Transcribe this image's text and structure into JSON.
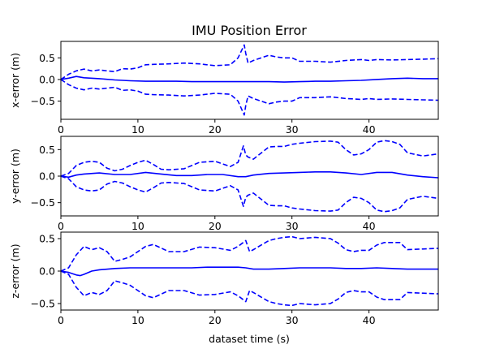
{
  "chart_data": {
    "type": "line",
    "title": "IMU Position Error",
    "xlabel": "dataset time (s)",
    "xlim": [
      0,
      49
    ],
    "x_ticks": [
      0,
      10,
      20,
      30,
      40
    ],
    "grid": false,
    "line_color": "#0000ff",
    "panels": [
      {
        "ylabel": "x-error (m)",
        "ylim": [
          -0.92,
          0.88
        ],
        "y_ticks": [
          -0.5,
          0.0,
          0.5
        ],
        "y_tick_labels": [
          "−0.5",
          "0.0",
          "0.5"
        ],
        "series": [
          {
            "style": "solid",
            "x": [
              0,
              1,
              2,
              3,
              5,
              7,
              9,
              11,
              13,
              15,
              17,
              19,
              21,
              23,
              24,
              25,
              27,
              29,
              31,
              33,
              35,
              37,
              39,
              41,
              43,
              45,
              47,
              49
            ],
            "y": [
              0,
              0.03,
              0.07,
              0.04,
              0.02,
              -0.01,
              -0.03,
              -0.04,
              -0.04,
              -0.04,
              -0.05,
              -0.05,
              -0.05,
              -0.05,
              -0.05,
              -0.05,
              -0.05,
              -0.06,
              -0.05,
              -0.04,
              -0.04,
              -0.03,
              -0.02,
              0,
              0.02,
              0.03,
              0.02,
              0.02
            ]
          },
          {
            "style": "dashed",
            "x": [
              0,
              1,
              2,
              3,
              4,
              5,
              6,
              7,
              8,
              9,
              10,
              11,
              12,
              14,
              16,
              18,
              20,
              22,
              23,
              23.8,
              24.0,
              24.3,
              25,
              27,
              28,
              29,
              30,
              31,
              33,
              35,
              37,
              38,
              39,
              40,
              41,
              43,
              45,
              47,
              49
            ],
            "y": [
              0,
              0.12,
              0.2,
              0.24,
              0.2,
              0.22,
              0.2,
              0.18,
              0.25,
              0.24,
              0.27,
              0.34,
              0.35,
              0.36,
              0.38,
              0.36,
              0.32,
              0.34,
              0.5,
              0.8,
              0.6,
              0.38,
              0.44,
              0.56,
              0.52,
              0.5,
              0.5,
              0.42,
              0.42,
              0.4,
              0.44,
              0.45,
              0.46,
              0.44,
              0.46,
              0.45,
              0.46,
              0.47,
              0.48
            ]
          },
          {
            "style": "dashed",
            "x": [
              0,
              1,
              2,
              3,
              4,
              5,
              6,
              7,
              8,
              9,
              10,
              11,
              12,
              14,
              16,
              18,
              20,
              22,
              23,
              23.8,
              24.0,
              24.3,
              25,
              27,
              28,
              29,
              30,
              31,
              33,
              35,
              37,
              38,
              39,
              40,
              41,
              43,
              45,
              47,
              49
            ],
            "y": [
              0,
              -0.12,
              -0.2,
              -0.24,
              -0.2,
              -0.22,
              -0.2,
              -0.18,
              -0.25,
              -0.24,
              -0.27,
              -0.34,
              -0.35,
              -0.36,
              -0.38,
              -0.36,
              -0.32,
              -0.34,
              -0.5,
              -0.82,
              -0.6,
              -0.38,
              -0.44,
              -0.56,
              -0.52,
              -0.5,
              -0.5,
              -0.42,
              -0.42,
              -0.4,
              -0.44,
              -0.45,
              -0.46,
              -0.44,
              -0.46,
              -0.45,
              -0.46,
              -0.47,
              -0.48
            ]
          }
        ]
      },
      {
        "ylabel": "y-error (m)",
        "ylim": [
          -0.75,
          0.75
        ],
        "y_ticks": [
          -0.5,
          0.0,
          0.5
        ],
        "y_tick_labels": [
          "−0.5",
          "0.0",
          "0.5"
        ],
        "series": [
          {
            "style": "solid",
            "x": [
              0,
              1,
              2,
              3,
              5,
              7,
              9,
              11,
              13,
              15,
              17,
              19,
              21,
              23,
              24,
              25,
              27,
              29,
              31,
              33,
              35,
              37,
              39,
              41,
              43,
              45,
              47,
              49
            ],
            "y": [
              0,
              -0.02,
              0.02,
              0.04,
              0.06,
              0.03,
              0.03,
              0.07,
              0.04,
              0.01,
              0.01,
              0.03,
              0.03,
              -0.01,
              -0.01,
              0.02,
              0.05,
              0.06,
              0.07,
              0.08,
              0.08,
              0.06,
              0.03,
              0.07,
              0.07,
              0.02,
              -0.01,
              -0.03
            ]
          },
          {
            "style": "dashed",
            "x": [
              0,
              1,
              2,
              3,
              4,
              5,
              6,
              7,
              8,
              9,
              10,
              11,
              12,
              13,
              14,
              16,
              18,
              20,
              22,
              23,
              23.7,
              24.0,
              24.3,
              25,
              27,
              28,
              29,
              30,
              31,
              33,
              35,
              36,
              37,
              38,
              39,
              40,
              41,
              42,
              43,
              44,
              45,
              47,
              49
            ],
            "y": [
              0,
              0.05,
              0.2,
              0.26,
              0.28,
              0.26,
              0.15,
              0.1,
              0.13,
              0.2,
              0.26,
              0.3,
              0.22,
              0.13,
              0.12,
              0.14,
              0.26,
              0.28,
              0.18,
              0.26,
              0.57,
              0.4,
              0.36,
              0.32,
              0.55,
              0.56,
              0.56,
              0.6,
              0.62,
              0.65,
              0.66,
              0.64,
              0.5,
              0.4,
              0.42,
              0.5,
              0.64,
              0.67,
              0.65,
              0.6,
              0.44,
              0.38,
              0.42
            ]
          },
          {
            "style": "dashed",
            "x": [
              0,
              1,
              2,
              3,
              4,
              5,
              6,
              7,
              8,
              9,
              10,
              11,
              12,
              13,
              14,
              16,
              18,
              20,
              22,
              23,
              23.7,
              24.0,
              24.3,
              25,
              27,
              28,
              29,
              30,
              31,
              33,
              35,
              36,
              37,
              38,
              39,
              40,
              41,
              42,
              43,
              44,
              45,
              47,
              49
            ],
            "y": [
              0,
              -0.05,
              -0.2,
              -0.26,
              -0.28,
              -0.26,
              -0.15,
              -0.1,
              -0.13,
              -0.2,
              -0.26,
              -0.3,
              -0.22,
              -0.13,
              -0.12,
              -0.14,
              -0.26,
              -0.28,
              -0.18,
              -0.26,
              -0.57,
              -0.4,
              -0.36,
              -0.32,
              -0.55,
              -0.56,
              -0.56,
              -0.6,
              -0.62,
              -0.65,
              -0.66,
              -0.64,
              -0.5,
              -0.4,
              -0.42,
              -0.5,
              -0.64,
              -0.67,
              -0.65,
              -0.6,
              -0.44,
              -0.38,
              -0.42
            ]
          }
        ]
      },
      {
        "ylabel": "z-error (m)",
        "ylim": [
          -0.6,
          0.6
        ],
        "y_ticks": [
          -0.5,
          0.0,
          0.5
        ],
        "y_tick_labels": [
          "−0.5",
          "0.0",
          "0.5"
        ],
        "series": [
          {
            "style": "solid",
            "x": [
              0,
              1,
              2,
              2.5,
              3,
              4,
              5,
              7,
              9,
              11,
              13,
              15,
              17,
              19,
              21,
              23,
              24,
              25,
              27,
              29,
              31,
              33,
              35,
              37,
              39,
              41,
              43,
              45,
              47,
              49
            ],
            "y": [
              0,
              -0.02,
              -0.06,
              -0.07,
              -0.05,
              0,
              0.02,
              0.04,
              0.05,
              0.05,
              0.05,
              0.05,
              0.05,
              0.06,
              0.06,
              0.06,
              0.05,
              0.03,
              0.03,
              0.04,
              0.05,
              0.05,
              0.05,
              0.04,
              0.04,
              0.05,
              0.04,
              0.03,
              0.03,
              0.03
            ]
          },
          {
            "style": "dashed",
            "x": [
              0,
              1,
              2,
              3,
              4,
              5,
              6,
              7,
              8,
              9,
              10,
              11,
              12,
              14,
              16,
              18,
              20,
              22,
              23,
              24,
              24.5,
              25,
              27,
              28,
              29,
              30,
              31,
              33,
              35,
              36,
              37,
              38,
              39,
              40,
              41,
              42,
              43,
              44,
              45,
              47,
              49
            ],
            "y": [
              0,
              0.05,
              0.25,
              0.38,
              0.33,
              0.36,
              0.3,
              0.15,
              0.18,
              0.22,
              0.3,
              0.38,
              0.41,
              0.3,
              0.3,
              0.37,
              0.36,
              0.32,
              0.38,
              0.47,
              0.3,
              0.33,
              0.47,
              0.5,
              0.52,
              0.53,
              0.5,
              0.52,
              0.5,
              0.43,
              0.33,
              0.3,
              0.32,
              0.32,
              0.4,
              0.44,
              0.44,
              0.44,
              0.33,
              0.34,
              0.35
            ]
          },
          {
            "style": "dashed",
            "x": [
              0,
              1,
              2,
              3,
              4,
              5,
              6,
              7,
              8,
              9,
              10,
              11,
              12,
              14,
              16,
              18,
              20,
              22,
              23,
              24,
              24.5,
              25,
              27,
              28,
              29,
              30,
              31,
              33,
              35,
              36,
              37,
              38,
              39,
              40,
              41,
              42,
              43,
              44,
              45,
              47,
              49
            ],
            "y": [
              0,
              -0.05,
              -0.25,
              -0.38,
              -0.33,
              -0.36,
              -0.3,
              -0.15,
              -0.18,
              -0.22,
              -0.3,
              -0.38,
              -0.41,
              -0.3,
              -0.3,
              -0.37,
              -0.36,
              -0.32,
              -0.38,
              -0.47,
              -0.3,
              -0.33,
              -0.47,
              -0.5,
              -0.52,
              -0.53,
              -0.5,
              -0.52,
              -0.5,
              -0.43,
              -0.33,
              -0.3,
              -0.32,
              -0.32,
              -0.4,
              -0.44,
              -0.44,
              -0.44,
              -0.33,
              -0.34,
              -0.35
            ]
          }
        ]
      }
    ]
  }
}
